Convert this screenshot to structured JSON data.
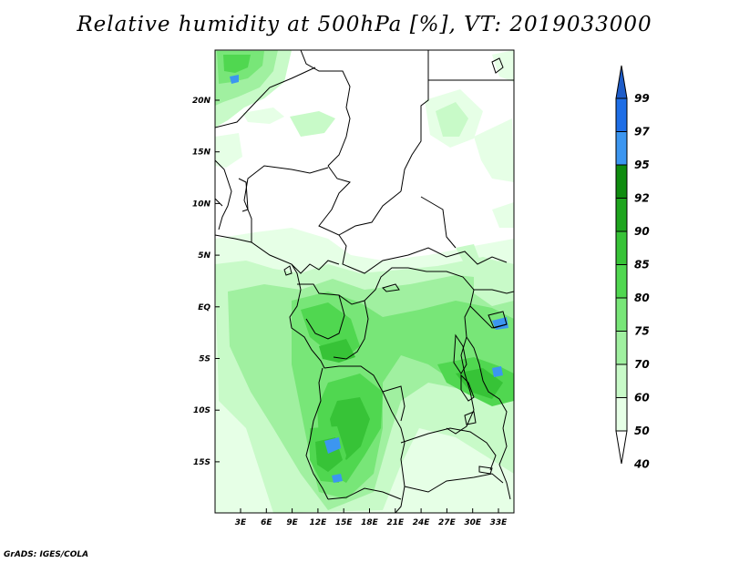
{
  "title": "Relative humidity at 500hPa [%], VT: 2019033000",
  "credit": "GrADS: IGES/COLA",
  "map": {
    "lat_labels": [
      "20N",
      "15N",
      "10N",
      "5N",
      "EQ",
      "5S",
      "10S",
      "15S"
    ],
    "lon_labels": [
      "3E",
      "6E",
      "9E",
      "12E",
      "15E",
      "18E",
      "21E",
      "24E",
      "27E",
      "30E",
      "33E"
    ]
  },
  "colorbar": {
    "labels": [
      "99",
      "97",
      "95",
      "92",
      "90",
      "85",
      "80",
      "75",
      "70",
      "60",
      "50",
      "40"
    ],
    "colors": [
      "#1e5cc8",
      "#1e6ee6",
      "#3c96f0",
      "#0f8c0f",
      "#1ea51e",
      "#37c337",
      "#50d750",
      "#78e678",
      "#a0f0a0",
      "#c8fac8",
      "#e6ffe6",
      "#ffffff"
    ]
  }
}
